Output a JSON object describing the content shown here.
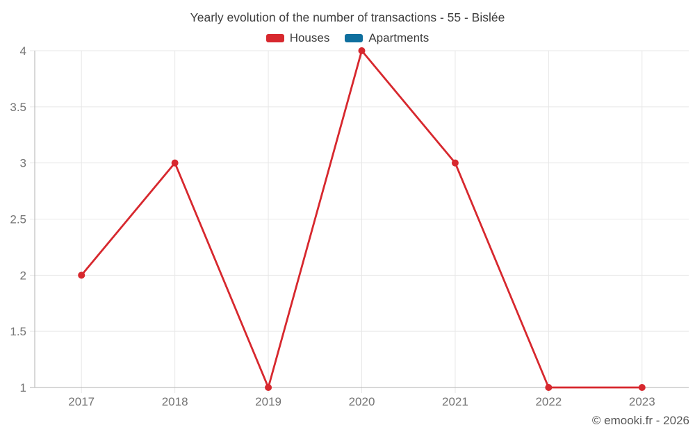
{
  "chart_data": {
    "type": "line",
    "title": "Yearly evolution of the number of transactions - 55 - Bislée",
    "categories": [
      "2017",
      "2018",
      "2019",
      "2020",
      "2021",
      "2022",
      "2023"
    ],
    "series": [
      {
        "name": "Houses",
        "color": "#d7282e",
        "values": [
          2,
          3,
          1,
          4,
          3,
          1,
          1
        ]
      },
      {
        "name": "Apartments",
        "color": "#0f6f9e",
        "values": []
      }
    ],
    "xlabel": "",
    "ylabel": "",
    "ylim": [
      1,
      4
    ],
    "yticks": [
      1,
      1.5,
      2,
      2.5,
      3,
      3.5,
      4
    ],
    "grid": true,
    "legend_position": "top"
  },
  "footer": {
    "credit": "© emooki.fr - 2026"
  }
}
